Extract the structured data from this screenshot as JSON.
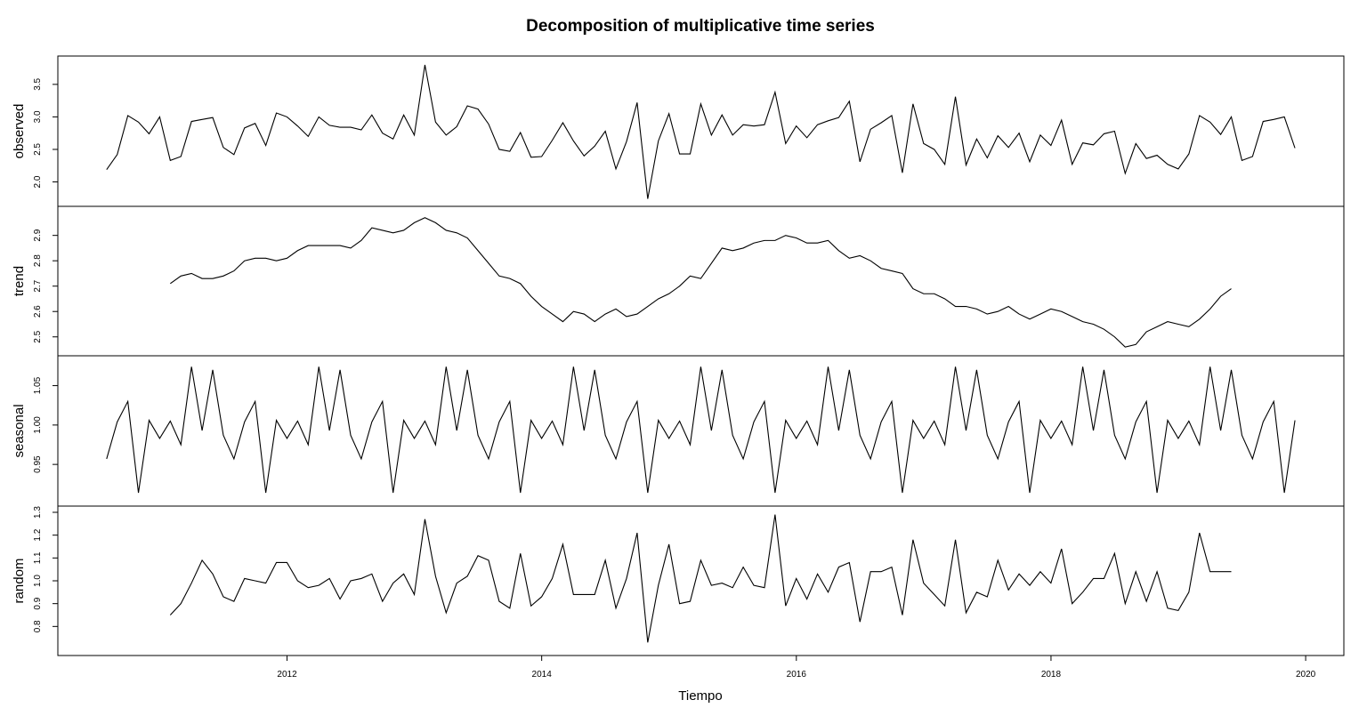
{
  "chart_data": {
    "type": "line",
    "title": "Decomposition of multiplicative time series",
    "xlabel": "Tiempo",
    "x_start": 2010.583,
    "x_step": 0.08333,
    "x_ticks": [
      2012,
      2014,
      2016,
      2018,
      2020
    ],
    "x_tick_labels": [
      "2012",
      "2014",
      "2016",
      "2018",
      "2020"
    ],
    "xlim": [
      2010.2,
      2020.3
    ],
    "grid": false,
    "legend": "none",
    "panels": [
      {
        "name": "observed",
        "ylim": [
          1.72,
          3.84
        ],
        "y_ticks": [
          2.0,
          2.5,
          3.0,
          3.5
        ],
        "y_tick_labels": [
          "2.0",
          "2.5",
          "3.0",
          "3.5"
        ],
        "values": [
          2.19,
          2.42,
          3.02,
          2.92,
          2.74,
          3.0,
          2.33,
          2.39,
          2.93,
          2.96,
          2.99,
          2.53,
          2.42,
          2.83,
          2.9,
          2.56,
          3.06,
          3.0,
          2.86,
          2.7,
          3.0,
          2.87,
          2.84,
          2.84,
          2.8,
          3.03,
          2.75,
          2.66,
          3.03,
          2.72,
          3.8,
          2.92,
          2.72,
          2.85,
          3.17,
          3.12,
          2.89,
          2.5,
          2.47,
          2.76,
          2.38,
          2.39,
          2.64,
          2.91,
          2.63,
          2.4,
          2.55,
          2.78,
          2.2,
          2.62,
          3.22,
          1.74,
          2.63,
          3.05,
          2.43,
          2.43,
          3.2,
          2.72,
          3.03,
          2.72,
          2.88,
          2.86,
          2.88,
          3.38,
          2.59,
          2.86,
          2.68,
          2.88,
          2.94,
          2.99,
          3.24,
          2.31,
          2.81,
          2.91,
          3.02,
          2.14,
          3.2,
          2.59,
          2.5,
          2.27,
          3.31,
          2.26,
          2.66,
          2.37,
          2.71,
          2.53,
          2.75,
          2.31,
          2.72,
          2.56,
          2.95,
          2.27,
          2.6,
          2.57,
          2.74,
          2.78,
          2.13,
          2.59,
          2.36,
          2.41,
          2.27,
          2.2,
          2.43,
          3.02,
          2.92,
          2.73,
          3.0,
          2.33,
          2.39,
          2.93,
          2.96,
          3.0,
          2.52
        ]
      },
      {
        "name": "trend",
        "ylim": [
          2.45,
          2.99
        ],
        "y_ticks": [
          2.5,
          2.6,
          2.7,
          2.8,
          2.9
        ],
        "y_tick_labels": [
          "2.5",
          "2.6",
          "2.7",
          "2.8",
          "2.9"
        ],
        "values": [
          null,
          null,
          null,
          null,
          null,
          null,
          2.71,
          2.74,
          2.75,
          2.73,
          2.73,
          2.74,
          2.76,
          2.8,
          2.81,
          2.81,
          2.8,
          2.81,
          2.84,
          2.86,
          2.86,
          2.86,
          2.86,
          2.85,
          2.88,
          2.93,
          2.92,
          2.91,
          2.92,
          2.95,
          2.97,
          2.95,
          2.92,
          2.91,
          2.89,
          2.84,
          2.79,
          2.74,
          2.73,
          2.71,
          2.66,
          2.62,
          2.59,
          2.56,
          2.6,
          2.59,
          2.56,
          2.59,
          2.61,
          2.58,
          2.59,
          2.62,
          2.65,
          2.67,
          2.7,
          2.74,
          2.73,
          2.79,
          2.85,
          2.84,
          2.85,
          2.87,
          2.88,
          2.88,
          2.9,
          2.89,
          2.87,
          2.87,
          2.88,
          2.84,
          2.81,
          2.82,
          2.8,
          2.77,
          2.76,
          2.75,
          2.69,
          2.67,
          2.67,
          2.65,
          2.62,
          2.62,
          2.61,
          2.59,
          2.6,
          2.62,
          2.59,
          2.57,
          2.59,
          2.61,
          2.6,
          2.58,
          2.56,
          2.55,
          2.53,
          2.5,
          2.46,
          2.47,
          2.52,
          2.54,
          2.56,
          2.55,
          2.54,
          2.57,
          2.61,
          2.66,
          2.69,
          null,
          null,
          null,
          null,
          null,
          null
        ]
      },
      {
        "name": "seasonal",
        "ylim": [
          0.905,
          1.08
        ],
        "y_ticks": [
          0.95,
          1.0,
          1.05
        ],
        "y_tick_labels": [
          "0.95",
          "1.00",
          "1.05"
        ],
        "values": [
          0.957,
          1.004,
          1.03,
          0.914,
          1.006,
          0.983,
          1.005,
          0.975,
          1.074,
          0.993,
          1.07,
          0.987,
          0.957,
          1.004,
          1.03,
          0.914,
          1.006,
          0.983,
          1.005,
          0.975,
          1.074,
          0.993,
          1.07,
          0.987,
          0.957,
          1.004,
          1.03,
          0.914,
          1.006,
          0.983,
          1.005,
          0.975,
          1.074,
          0.993,
          1.07,
          0.987,
          0.957,
          1.004,
          1.03,
          0.914,
          1.006,
          0.983,
          1.005,
          0.975,
          1.074,
          0.993,
          1.07,
          0.987,
          0.957,
          1.004,
          1.03,
          0.914,
          1.006,
          0.983,
          1.005,
          0.975,
          1.074,
          0.993,
          1.07,
          0.987,
          0.957,
          1.004,
          1.03,
          0.914,
          1.006,
          0.983,
          1.005,
          0.975,
          1.074,
          0.993,
          1.07,
          0.987,
          0.957,
          1.004,
          1.03,
          0.914,
          1.006,
          0.983,
          1.005,
          0.975,
          1.074,
          0.993,
          1.07,
          0.987,
          0.957,
          1.004,
          1.03,
          0.914,
          1.006,
          0.983,
          1.005,
          0.975,
          1.074,
          0.993,
          1.07,
          0.987,
          0.957,
          1.004,
          1.03,
          0.914,
          1.006,
          0.983,
          1.005,
          0.975,
          1.074,
          0.993,
          1.07,
          0.987,
          0.957,
          1.004,
          1.03,
          0.914,
          1.006
        ]
      },
      {
        "name": "random",
        "ylim": [
          0.7,
          1.3
        ],
        "y_ticks": [
          0.8,
          0.9,
          1.0,
          1.1,
          1.2,
          1.3
        ],
        "y_tick_labels": [
          "0.8",
          "0.9",
          "1.0",
          "1.1",
          "1.2",
          "1.3"
        ],
        "values": [
          null,
          null,
          null,
          null,
          null,
          null,
          0.85,
          0.9,
          0.99,
          1.09,
          1.03,
          0.93,
          0.91,
          1.01,
          1.0,
          0.99,
          1.08,
          1.08,
          1.0,
          0.97,
          0.98,
          1.01,
          0.92,
          1.0,
          1.01,
          1.03,
          0.91,
          0.99,
          1.03,
          0.94,
          1.27,
          1.02,
          0.86,
          0.99,
          1.02,
          1.11,
          1.09,
          0.91,
          0.88,
          1.12,
          0.89,
          0.93,
          1.01,
          1.16,
          0.94,
          0.94,
          0.94,
          1.09,
          0.88,
          1.01,
          1.21,
          0.73,
          0.98,
          1.16,
          0.9,
          0.91,
          1.09,
          0.98,
          0.99,
          0.97,
          1.06,
          0.98,
          0.97,
          1.29,
          0.89,
          1.01,
          0.92,
          1.03,
          0.95,
          1.06,
          1.08,
          0.82,
          1.04,
          1.04,
          1.06,
          0.85,
          1.18,
          0.99,
          0.94,
          0.89,
          1.18,
          0.86,
          0.95,
          0.93,
          1.09,
          0.96,
          1.03,
          0.98,
          1.04,
          0.99,
          1.14,
          0.9,
          0.95,
          1.01,
          1.01,
          1.12,
          0.9,
          1.04,
          0.91,
          1.04,
          0.88,
          0.87,
          0.95,
          1.21,
          1.04,
          1.04,
          1.04,
          null,
          null,
          null,
          null,
          null,
          null
        ]
      }
    ]
  }
}
